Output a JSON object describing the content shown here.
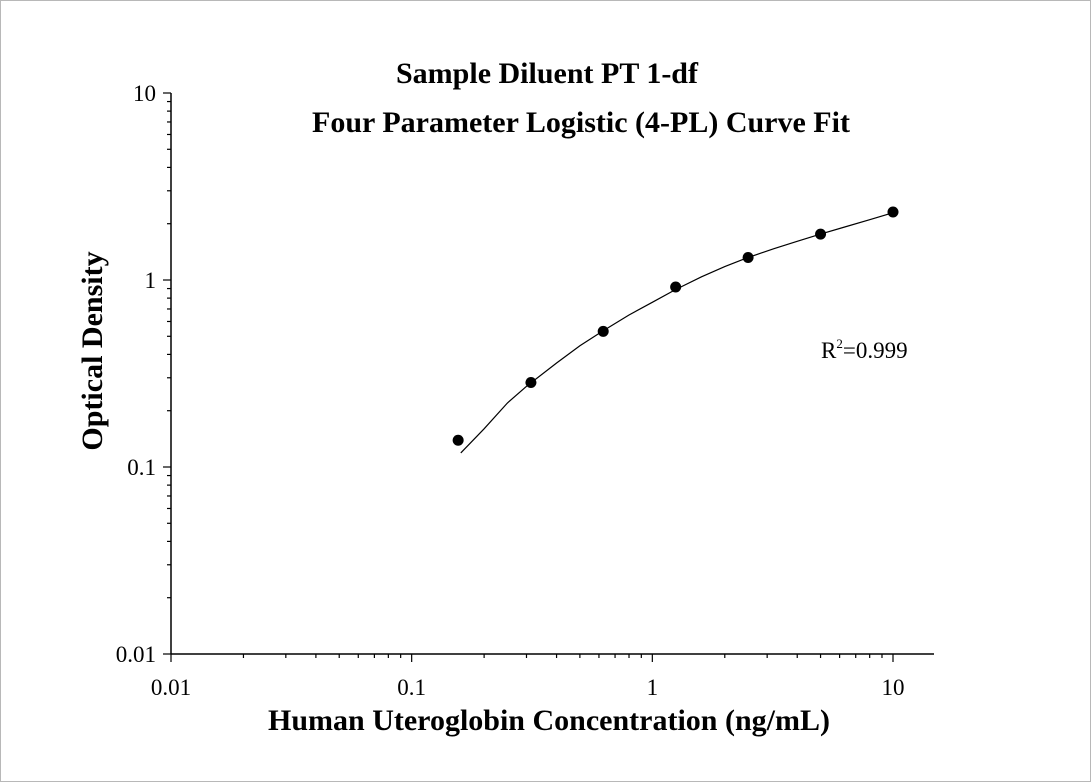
{
  "chart_data": {
    "type": "scatter",
    "title": "Sample Diluent PT 1-df",
    "subtitle": "Four Parameter Logistic (4-PL) Curve Fit",
    "xlabel": "Human Uteroglobin Concentration (ng/mL)",
    "ylabel": "Optical Density",
    "xscale": "log",
    "yscale": "log",
    "xlim": [
      0.01,
      15
    ],
    "ylim": [
      0.01,
      10
    ],
    "x_ticks": [
      "0.01",
      "0.1",
      "1",
      "10"
    ],
    "y_ticks": [
      "0.01",
      "0.1",
      "1",
      "10"
    ],
    "grid": false,
    "legend": "none",
    "series": [
      {
        "marker": "filled-circle",
        "x": [
          0.156,
          0.313,
          0.625,
          1.25,
          2.5,
          5,
          10
        ],
        "y": [
          0.139,
          0.283,
          0.531,
          0.917,
          1.32,
          1.76,
          2.31
        ]
      }
    ],
    "fit_curve": {
      "x": [
        0.16,
        0.2,
        0.25,
        0.3,
        0.4,
        0.5,
        0.625,
        0.8,
        1.0,
        1.25,
        1.6,
        2.0,
        2.5,
        3.2,
        4.0,
        5.0,
        6.3,
        8.0,
        10.0
      ],
      "y": [
        0.119,
        0.16,
        0.22,
        0.27,
        0.36,
        0.445,
        0.535,
        0.65,
        0.76,
        0.89,
        1.04,
        1.18,
        1.32,
        1.47,
        1.61,
        1.76,
        1.92,
        2.1,
        2.29
      ]
    },
    "annotations": {
      "r_label": "R",
      "r_exp": "2",
      "r_value": "=0.999"
    }
  }
}
